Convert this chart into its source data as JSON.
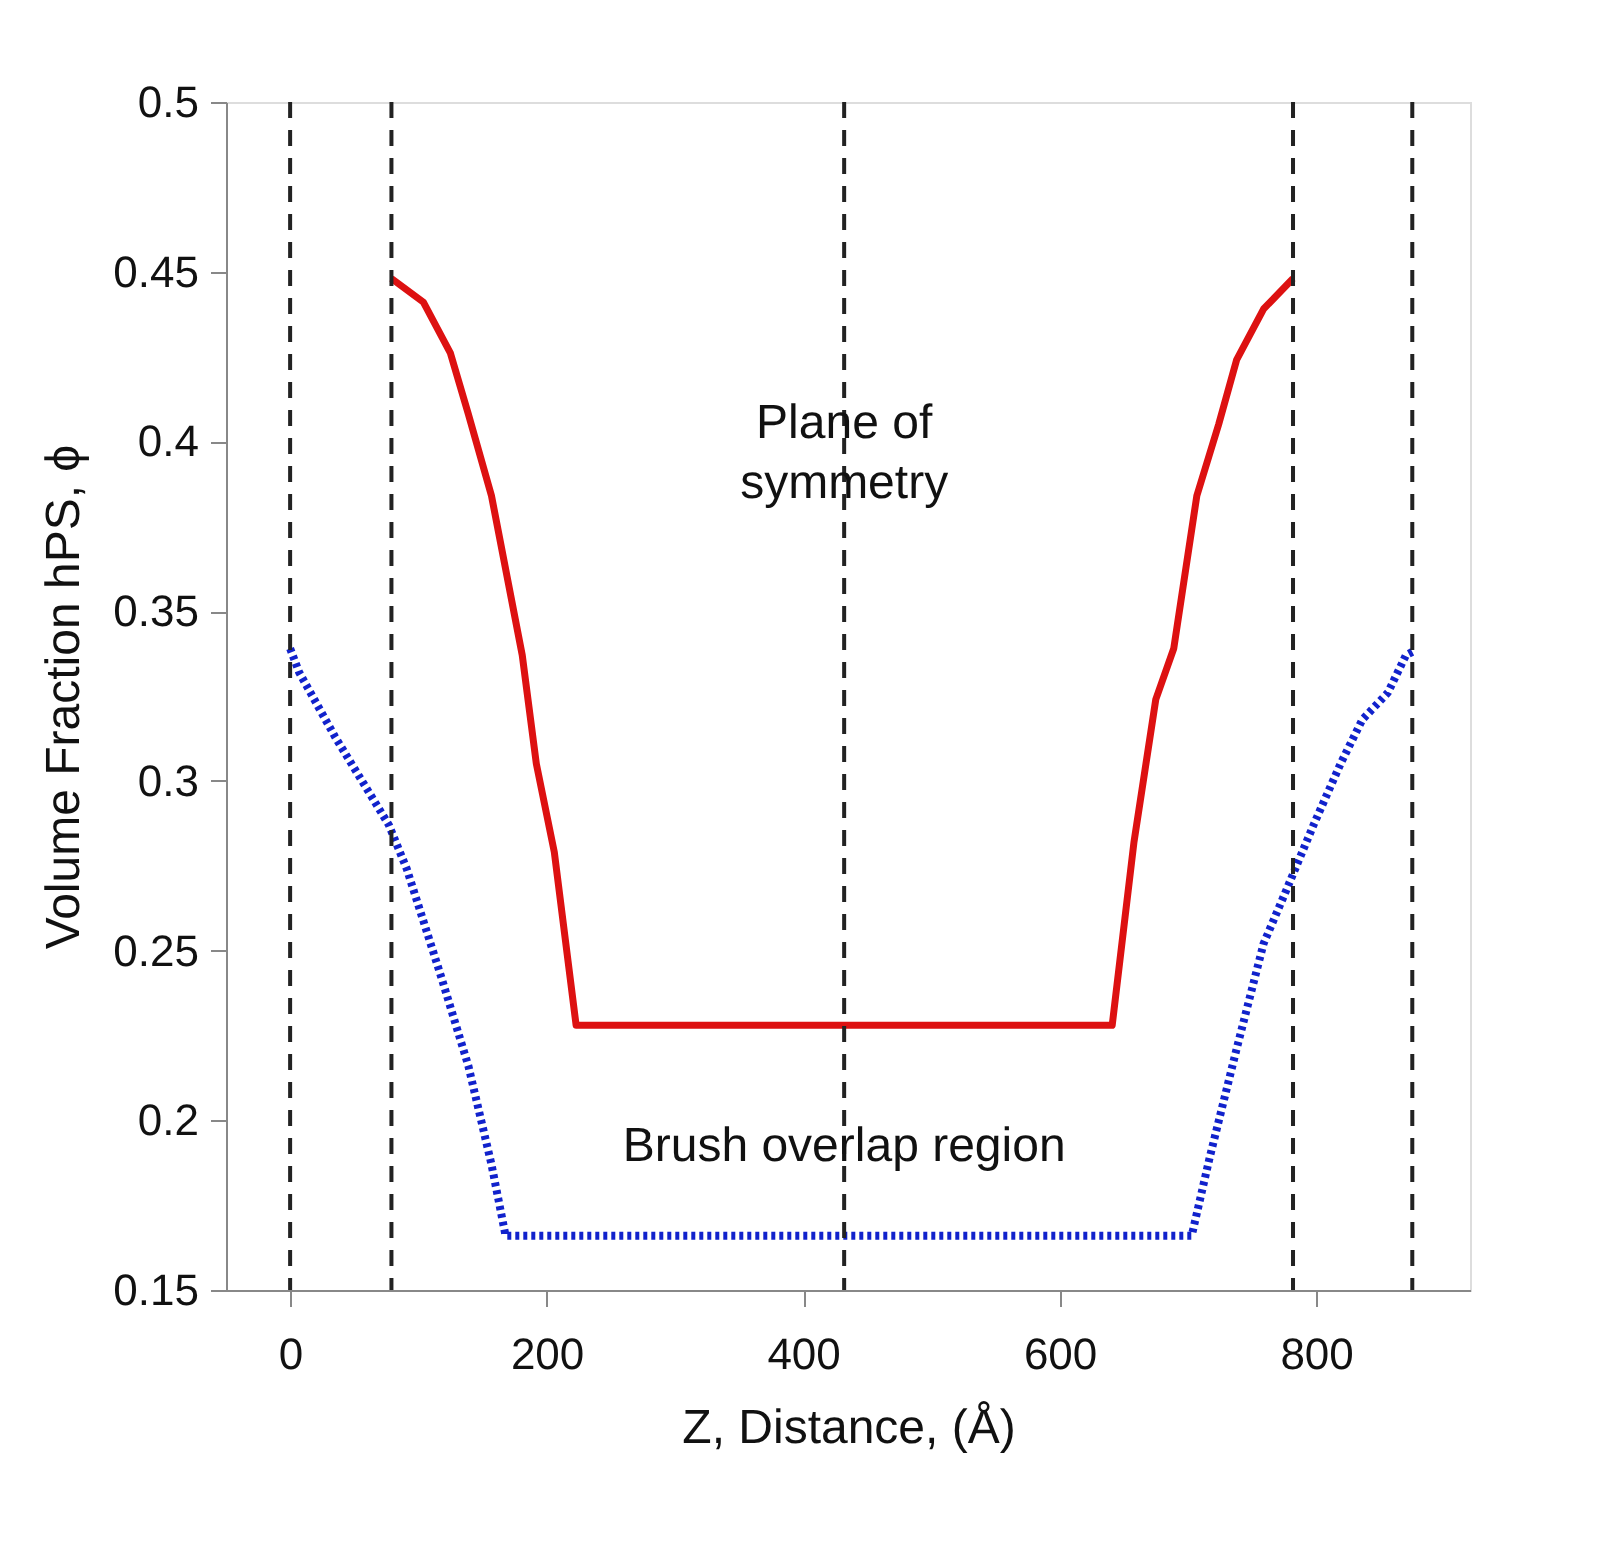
{
  "chart_data": {
    "type": "line",
    "xlabel": "Z, Distance, (Å)",
    "ylabel": "Volume Fraction hPS, ϕ",
    "xlim": [
      -50,
      920
    ],
    "xticks": [
      0,
      200,
      400,
      600,
      800
    ],
    "ylim": [
      0.15,
      0.5
    ],
    "yticks": [
      0.15,
      0.2,
      0.25,
      0.3,
      0.35,
      0.4,
      0.45,
      0.5
    ],
    "grid": false,
    "series": [
      {
        "color": "#dd1111",
        "line_style": "solid",
        "x": [
          79,
          104,
          125,
          139,
          157,
          181,
          192,
          206,
          223,
          641,
          658,
          675,
          689,
          707,
          724,
          738,
          759,
          782
        ],
        "values": [
          0.448,
          0.441,
          0.426,
          0.408,
          0.384,
          0.337,
          0.305,
          0.279,
          0.228,
          0.228,
          0.282,
          0.324,
          0.339,
          0.384,
          0.405,
          0.424,
          0.439,
          0.448
        ]
      },
      {
        "color": "#1122cc",
        "line_style": "dotted",
        "x": [
          0,
          7,
          35,
          56,
          77,
          91,
          118,
          139,
          157,
          168,
          703,
          717,
          738,
          759,
          777,
          798,
          819,
          836,
          856,
          870,
          875
        ],
        "values": [
          0.339,
          0.332,
          0.313,
          0.3,
          0.287,
          0.274,
          0.242,
          0.216,
          0.187,
          0.166,
          0.166,
          0.189,
          0.221,
          0.252,
          0.268,
          0.287,
          0.305,
          0.318,
          0.326,
          0.337,
          0.338
        ]
      }
    ],
    "ref_lines": [
      {
        "axis": "x",
        "value": 0,
        "line_style": "dashed",
        "color": "#222222"
      },
      {
        "axis": "x",
        "value": 79,
        "line_style": "dashed",
        "color": "#222222"
      },
      {
        "axis": "x",
        "value": 432,
        "line_style": "dashed",
        "color": "#222222"
      },
      {
        "axis": "x",
        "value": 782,
        "line_style": "dashed",
        "color": "#222222"
      },
      {
        "axis": "x",
        "value": 875,
        "line_style": "dashed",
        "color": "#222222"
      }
    ],
    "annotations": [
      {
        "text": "Plane of symmetry",
        "x": 432,
        "y": 0.405
      },
      {
        "text": "Brush overlap region",
        "x": 432,
        "y": 0.192
      }
    ]
  }
}
